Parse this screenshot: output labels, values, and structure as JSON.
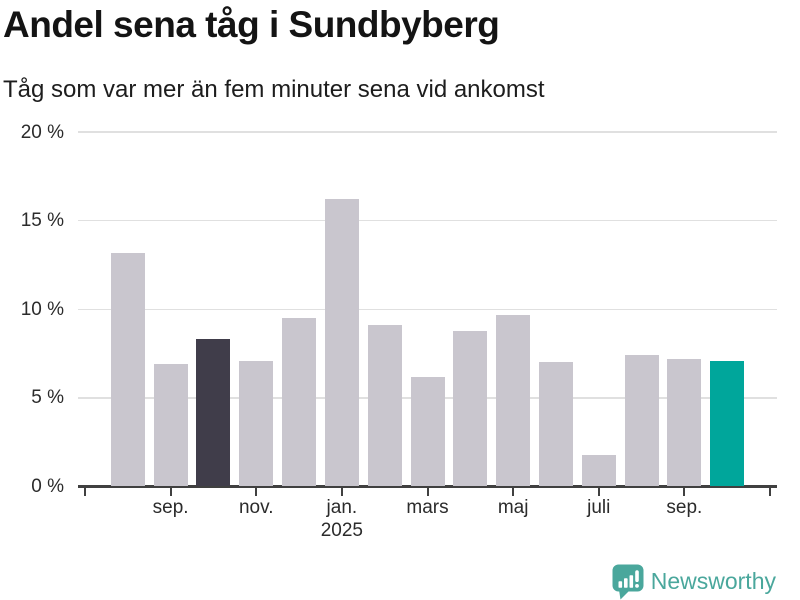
{
  "chart_data": {
    "type": "bar",
    "title": "Andel sena tåg i Sundbyberg",
    "subtitle": "Tåg som var mer än fem minuter sena vid ankomst",
    "unit": "%",
    "ylim": [
      0,
      20
    ],
    "grid": "horizontal",
    "legend": "none",
    "y_ticks": [
      {
        "value": 0,
        "label": "0 %"
      },
      {
        "value": 5,
        "label": "5 %"
      },
      {
        "value": 10,
        "label": "10 %"
      },
      {
        "value": 15,
        "label": "15 %"
      },
      {
        "value": 20,
        "label": "20 %"
      }
    ],
    "x_axis": {
      "month_span": 16,
      "ticks": [
        {
          "month": 0,
          "label": ""
        },
        {
          "month": 2,
          "label": "sep."
        },
        {
          "month": 4,
          "label": "nov."
        },
        {
          "month": 6,
          "label": "jan.",
          "sublabel": "2025"
        },
        {
          "month": 8,
          "label": "mars"
        },
        {
          "month": 10,
          "label": "maj"
        },
        {
          "month": 12,
          "label": "juli"
        },
        {
          "month": 14,
          "label": "sep."
        },
        {
          "month": 16,
          "label": ""
        }
      ]
    },
    "bars": [
      {
        "month": 1,
        "value": 13.2,
        "emphasis": "none"
      },
      {
        "month": 2,
        "value": 6.9,
        "emphasis": "none"
      },
      {
        "month": 3,
        "value": 8.3,
        "emphasis": "dark"
      },
      {
        "month": 4,
        "value": 7.1,
        "emphasis": "none"
      },
      {
        "month": 5,
        "value": 9.5,
        "emphasis": "none"
      },
      {
        "month": 6,
        "value": 16.2,
        "emphasis": "none"
      },
      {
        "month": 7,
        "value": 9.1,
        "emphasis": "none"
      },
      {
        "month": 8,
        "value": 6.2,
        "emphasis": "none"
      },
      {
        "month": 9,
        "value": 8.8,
        "emphasis": "none"
      },
      {
        "month": 10,
        "value": 9.7,
        "emphasis": "none"
      },
      {
        "month": 11,
        "value": 7.0,
        "emphasis": "none"
      },
      {
        "month": 12,
        "value": 1.8,
        "emphasis": "none"
      },
      {
        "month": 13,
        "value": 7.4,
        "emphasis": "none"
      },
      {
        "month": 14,
        "value": 7.2,
        "emphasis": "none"
      },
      {
        "month": 15,
        "value": 7.1,
        "emphasis": "teal"
      }
    ]
  },
  "colors": {
    "bar_default": "#C9C6CE",
    "bar_dark": "#403D4A",
    "bar_teal": "#00A69B",
    "grid": "#E0E0E0",
    "axis": "#404040",
    "axis_text": "#2B2B2B",
    "title_text": "#141414",
    "logo": "#4AA79C"
  },
  "footer": {
    "brand": "Newsworthy"
  }
}
